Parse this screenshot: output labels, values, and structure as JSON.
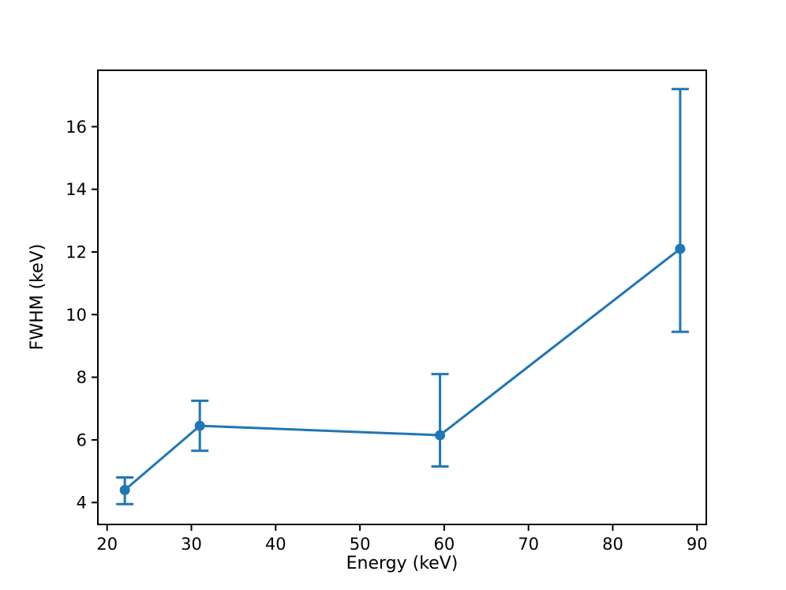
{
  "chart_data": {
    "type": "line",
    "title": "",
    "xlabel": "Energy (keV)",
    "ylabel": "FWHM (keV)",
    "x": [
      22.1,
      31.0,
      59.5,
      88.0
    ],
    "y": [
      4.4,
      6.45,
      6.15,
      12.1
    ],
    "err_plus": [
      0.4,
      0.8,
      1.95,
      5.1
    ],
    "err_minus": [
      0.45,
      0.8,
      1.0,
      2.65
    ],
    "xlim": [
      18.9,
      91.1
    ],
    "ylim": [
      3.3,
      17.8
    ],
    "xticks": [
      20,
      30,
      40,
      50,
      60,
      70,
      80,
      90
    ],
    "yticks": [
      4,
      6,
      8,
      10,
      12,
      14,
      16
    ],
    "grid": false,
    "legend": "none",
    "series_color": "#1f77b4",
    "axis_color": "#000000",
    "background": "#ffffff",
    "marker": "circle"
  }
}
